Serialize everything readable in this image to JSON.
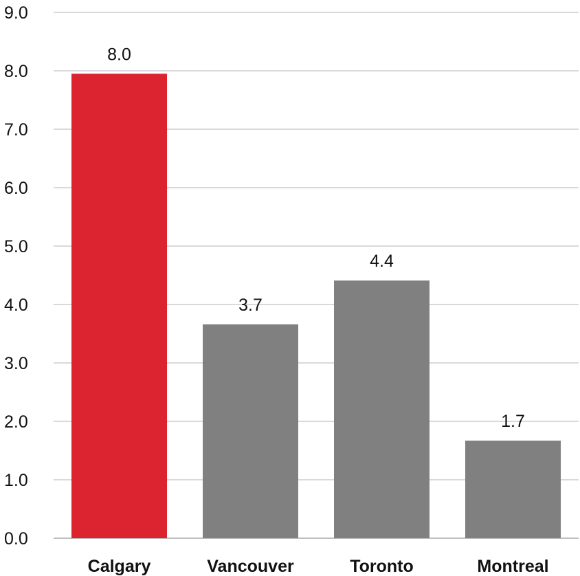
{
  "chart_data": {
    "type": "bar",
    "categories": [
      "Calgary",
      "Vancouver",
      "Toronto",
      "Montreal"
    ],
    "values": [
      7.95,
      3.66,
      4.41,
      1.67
    ],
    "value_labels": [
      "8.0",
      "3.7",
      "4.4",
      "1.7"
    ],
    "colors": [
      "#dc2430",
      "#808080",
      "#808080",
      "#808080"
    ],
    "ylim": [
      0,
      9
    ],
    "yticks": [
      0,
      1,
      2,
      3,
      4,
      5,
      6,
      7,
      8,
      9
    ],
    "ytick_labels": [
      "0.0",
      "1.0",
      "2.0",
      "3.0",
      "4.0",
      "5.0",
      "6.0",
      "7.0",
      "8.0",
      "9.0"
    ],
    "grid": true,
    "title": "",
    "xlabel": "",
    "ylabel": ""
  }
}
